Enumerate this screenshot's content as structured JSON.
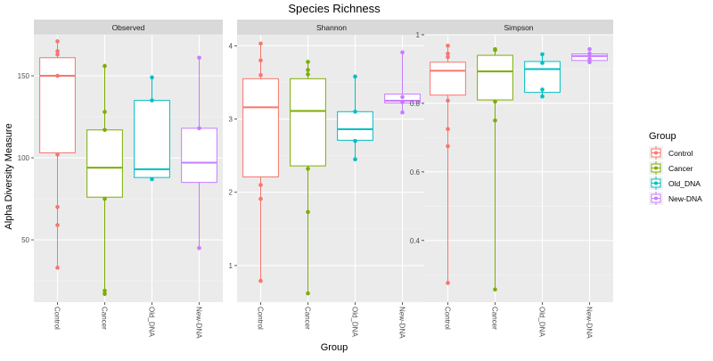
{
  "chart_data": {
    "type": "box",
    "title": "Species Richness",
    "xlabel": "Group",
    "ylabel": "Alpha Diversity Measure",
    "groups": [
      "Control",
      "Cancer",
      "Old_DNA",
      "New-DNA"
    ],
    "colors": {
      "Control": "#F8766D",
      "Cancer": "#7CAE00",
      "Old_DNA": "#00BFC4",
      "New-DNA": "#C77CFF"
    },
    "legend": {
      "title": "Group",
      "entries": [
        "Control",
        "Cancer",
        "Old_DNA",
        "New-DNA"
      ],
      "placement": "right"
    },
    "panels": [
      {
        "name": "Observed",
        "ylim": [
          12,
          175
        ],
        "yticks": [
          50,
          100,
          150
        ],
        "boxes": [
          {
            "group": "Control",
            "q1": 103,
            "median": 150,
            "q3": 161,
            "points": [
              171,
              165,
              163,
              150,
              102,
              70,
              59,
              33
            ]
          },
          {
            "group": "Cancer",
            "q1": 76,
            "median": 94,
            "q3": 117,
            "points": [
              156,
              128,
              117,
              75,
              19,
              17
            ]
          },
          {
            "group": "Old_DNA",
            "q1": 88,
            "median": 93,
            "q3": 135,
            "points": [
              149,
              135,
              87
            ]
          },
          {
            "group": "New-DNA",
            "q1": 85,
            "median": 97,
            "q3": 118,
            "points": [
              161,
              118,
              45
            ]
          }
        ]
      },
      {
        "name": "Shannon",
        "ylim": [
          0.5,
          4.15
        ],
        "yticks": [
          1,
          2,
          3,
          4
        ],
        "boxes": [
          {
            "group": "Control",
            "q1": 2.21,
            "median": 3.16,
            "q3": 3.55,
            "points": [
              4.03,
              3.8,
              3.6,
              2.1,
              1.91,
              0.79
            ]
          },
          {
            "group": "Cancer",
            "q1": 2.36,
            "median": 3.11,
            "q3": 3.55,
            "points": [
              3.78,
              3.67,
              3.61,
              2.32,
              1.73,
              0.62
            ]
          },
          {
            "group": "Old_DNA",
            "q1": 2.71,
            "median": 2.86,
            "q3": 3.1,
            "points": [
              3.58,
              3.1,
              2.7,
              2.45
            ]
          },
          {
            "group": "New-DNA",
            "q1": 3.22,
            "median": 3.25,
            "q3": 3.34,
            "points": [
              3.91,
              3.3,
              3.23,
              3.09
            ]
          }
        ]
      },
      {
        "name": "Simpson",
        "ylim": [
          0.22,
          1.0
        ],
        "yticks": [
          0.4,
          0.6,
          0.8,
          1.0
        ],
        "boxes": [
          {
            "group": "Control",
            "q1": 0.824,
            "median": 0.895,
            "q3": 0.92,
            "points": [
              0.968,
              0.945,
              0.935,
              0.808,
              0.725,
              0.675,
              0.276
            ]
          },
          {
            "group": "Cancer",
            "q1": 0.81,
            "median": 0.893,
            "q3": 0.94,
            "points": [
              0.958,
              0.955,
              0.805,
              0.75,
              0.257
            ]
          },
          {
            "group": "Old_DNA",
            "q1": 0.832,
            "median": 0.9,
            "q3": 0.922,
            "points": [
              0.943,
              0.918,
              0.84,
              0.82
            ]
          },
          {
            "group": "New-DNA",
            "q1": 0.925,
            "median": 0.938,
            "q3": 0.944,
            "points": [
              0.958,
              0.945,
              0.93,
              0.92
            ]
          }
        ]
      }
    ]
  }
}
